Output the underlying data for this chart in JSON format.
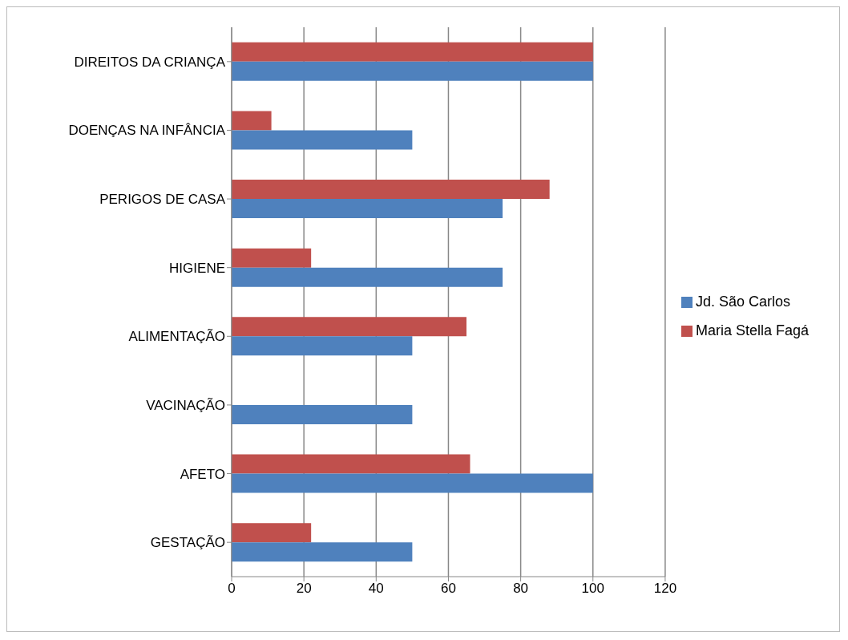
{
  "chart_data": {
    "type": "bar",
    "orientation": "horizontal",
    "categories": [
      "DIREITOS DA CRIANÇA",
      "DOENÇAS NA INFÂNCIA",
      "PERIGOS DE CASA",
      "HIGIENE",
      "ALIMENTAÇÃO",
      "VACINAÇÃO",
      "AFETO",
      "GESTAÇÃO"
    ],
    "series": [
      {
        "name": "Maria Stella Fagá",
        "color": "#c0504d",
        "values": [
          100,
          11,
          88,
          22,
          65,
          0,
          66,
          22
        ]
      },
      {
        "name": "Jd. São Carlos",
        "color": "#4f81bd",
        "values": [
          100,
          50,
          75,
          75,
          50,
          50,
          100,
          50
        ]
      }
    ],
    "xlim": [
      0,
      120
    ],
    "xticks": [
      0,
      20,
      40,
      60,
      80,
      100,
      120
    ],
    "grid": "x",
    "legend": "right"
  }
}
